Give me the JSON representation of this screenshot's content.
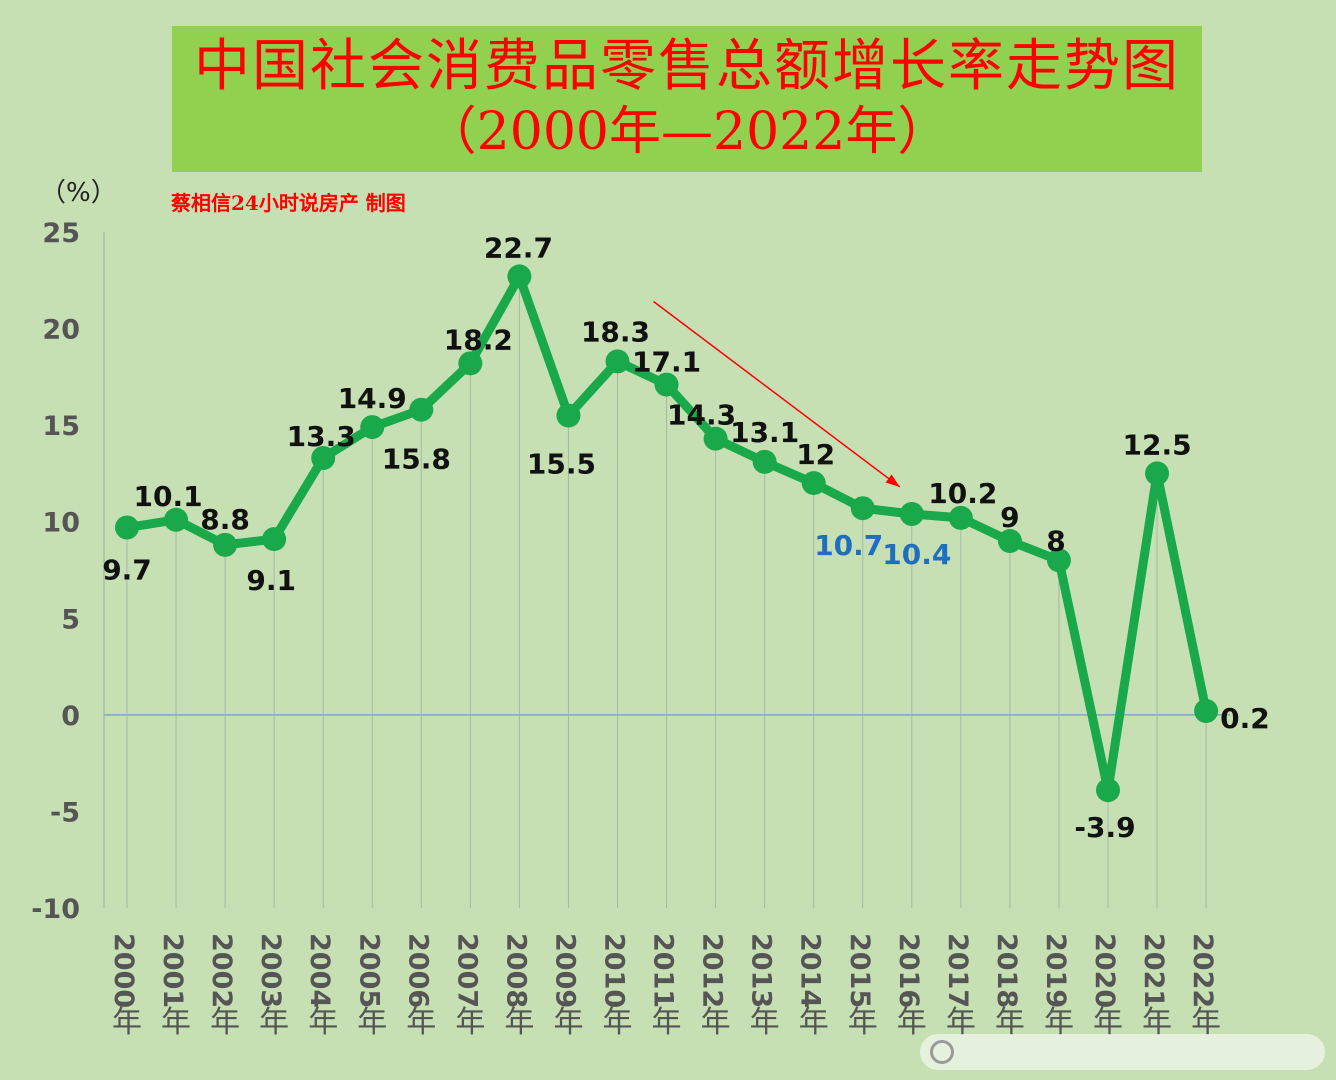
{
  "title": {
    "line1": "中国社会消费品零售总额增长率走势图",
    "line2": "（2000年—2022年）"
  },
  "unit_label": "（%）",
  "credit": "蔡相信24小时说房产  制图",
  "colors": {
    "background": "#c6e0b4",
    "title_bg": "#92d050",
    "title_text": "#ff0000",
    "line": "#19a84a",
    "highlight_label": "#1f6fbf",
    "arrow": "#ff0000",
    "label": "#111111"
  },
  "chart_data": {
    "type": "line",
    "title": "中国社会消费品零售总额增长率走势图（2000年—2022年）",
    "ylabel": "（%）",
    "xlabel": "",
    "ylim": [
      -10,
      25
    ],
    "yticks": [
      25,
      20,
      15,
      10,
      5,
      0,
      -5,
      -10
    ],
    "grid": "vertical drop lines",
    "legend": "none",
    "categories": [
      "2000年",
      "2001年",
      "2002年",
      "2003年",
      "2004年",
      "2005年",
      "2006年",
      "2007年",
      "2008年",
      "2009年",
      "2010年",
      "2011年",
      "2012年",
      "2013年",
      "2014年",
      "2015年",
      "2016年",
      "2017年",
      "2018年",
      "2019年",
      "2020年",
      "2021年",
      "2022年"
    ],
    "series": [
      {
        "values": [
          9.7,
          10.1,
          8.8,
          9.1,
          13.3,
          14.9,
          15.8,
          18.2,
          22.7,
          15.5,
          18.3,
          17.1,
          14.3,
          13.1,
          12,
          10.7,
          10.4,
          10.2,
          9,
          8,
          -3.9,
          12.5,
          0.2
        ],
        "labels": [
          "9.7",
          "10.1",
          "8.8",
          "9.1",
          "13.3",
          "14.9",
          "15.8",
          "18.2",
          "22.7",
          "15.5",
          "18.3",
          "17.1",
          "14.3",
          "13.1",
          "12",
          "10.7",
          "10.4",
          "10.2",
          "9",
          "8",
          "-3.9",
          "12.5",
          "0.2"
        ]
      }
    ],
    "highlighted_labels": [
      "2015年",
      "2016年"
    ],
    "annotations": [
      {
        "type": "arrow",
        "from_category": "2011年",
        "from_value": 21.4,
        "to_category": "2016年",
        "to_value": 11.8
      }
    ]
  }
}
